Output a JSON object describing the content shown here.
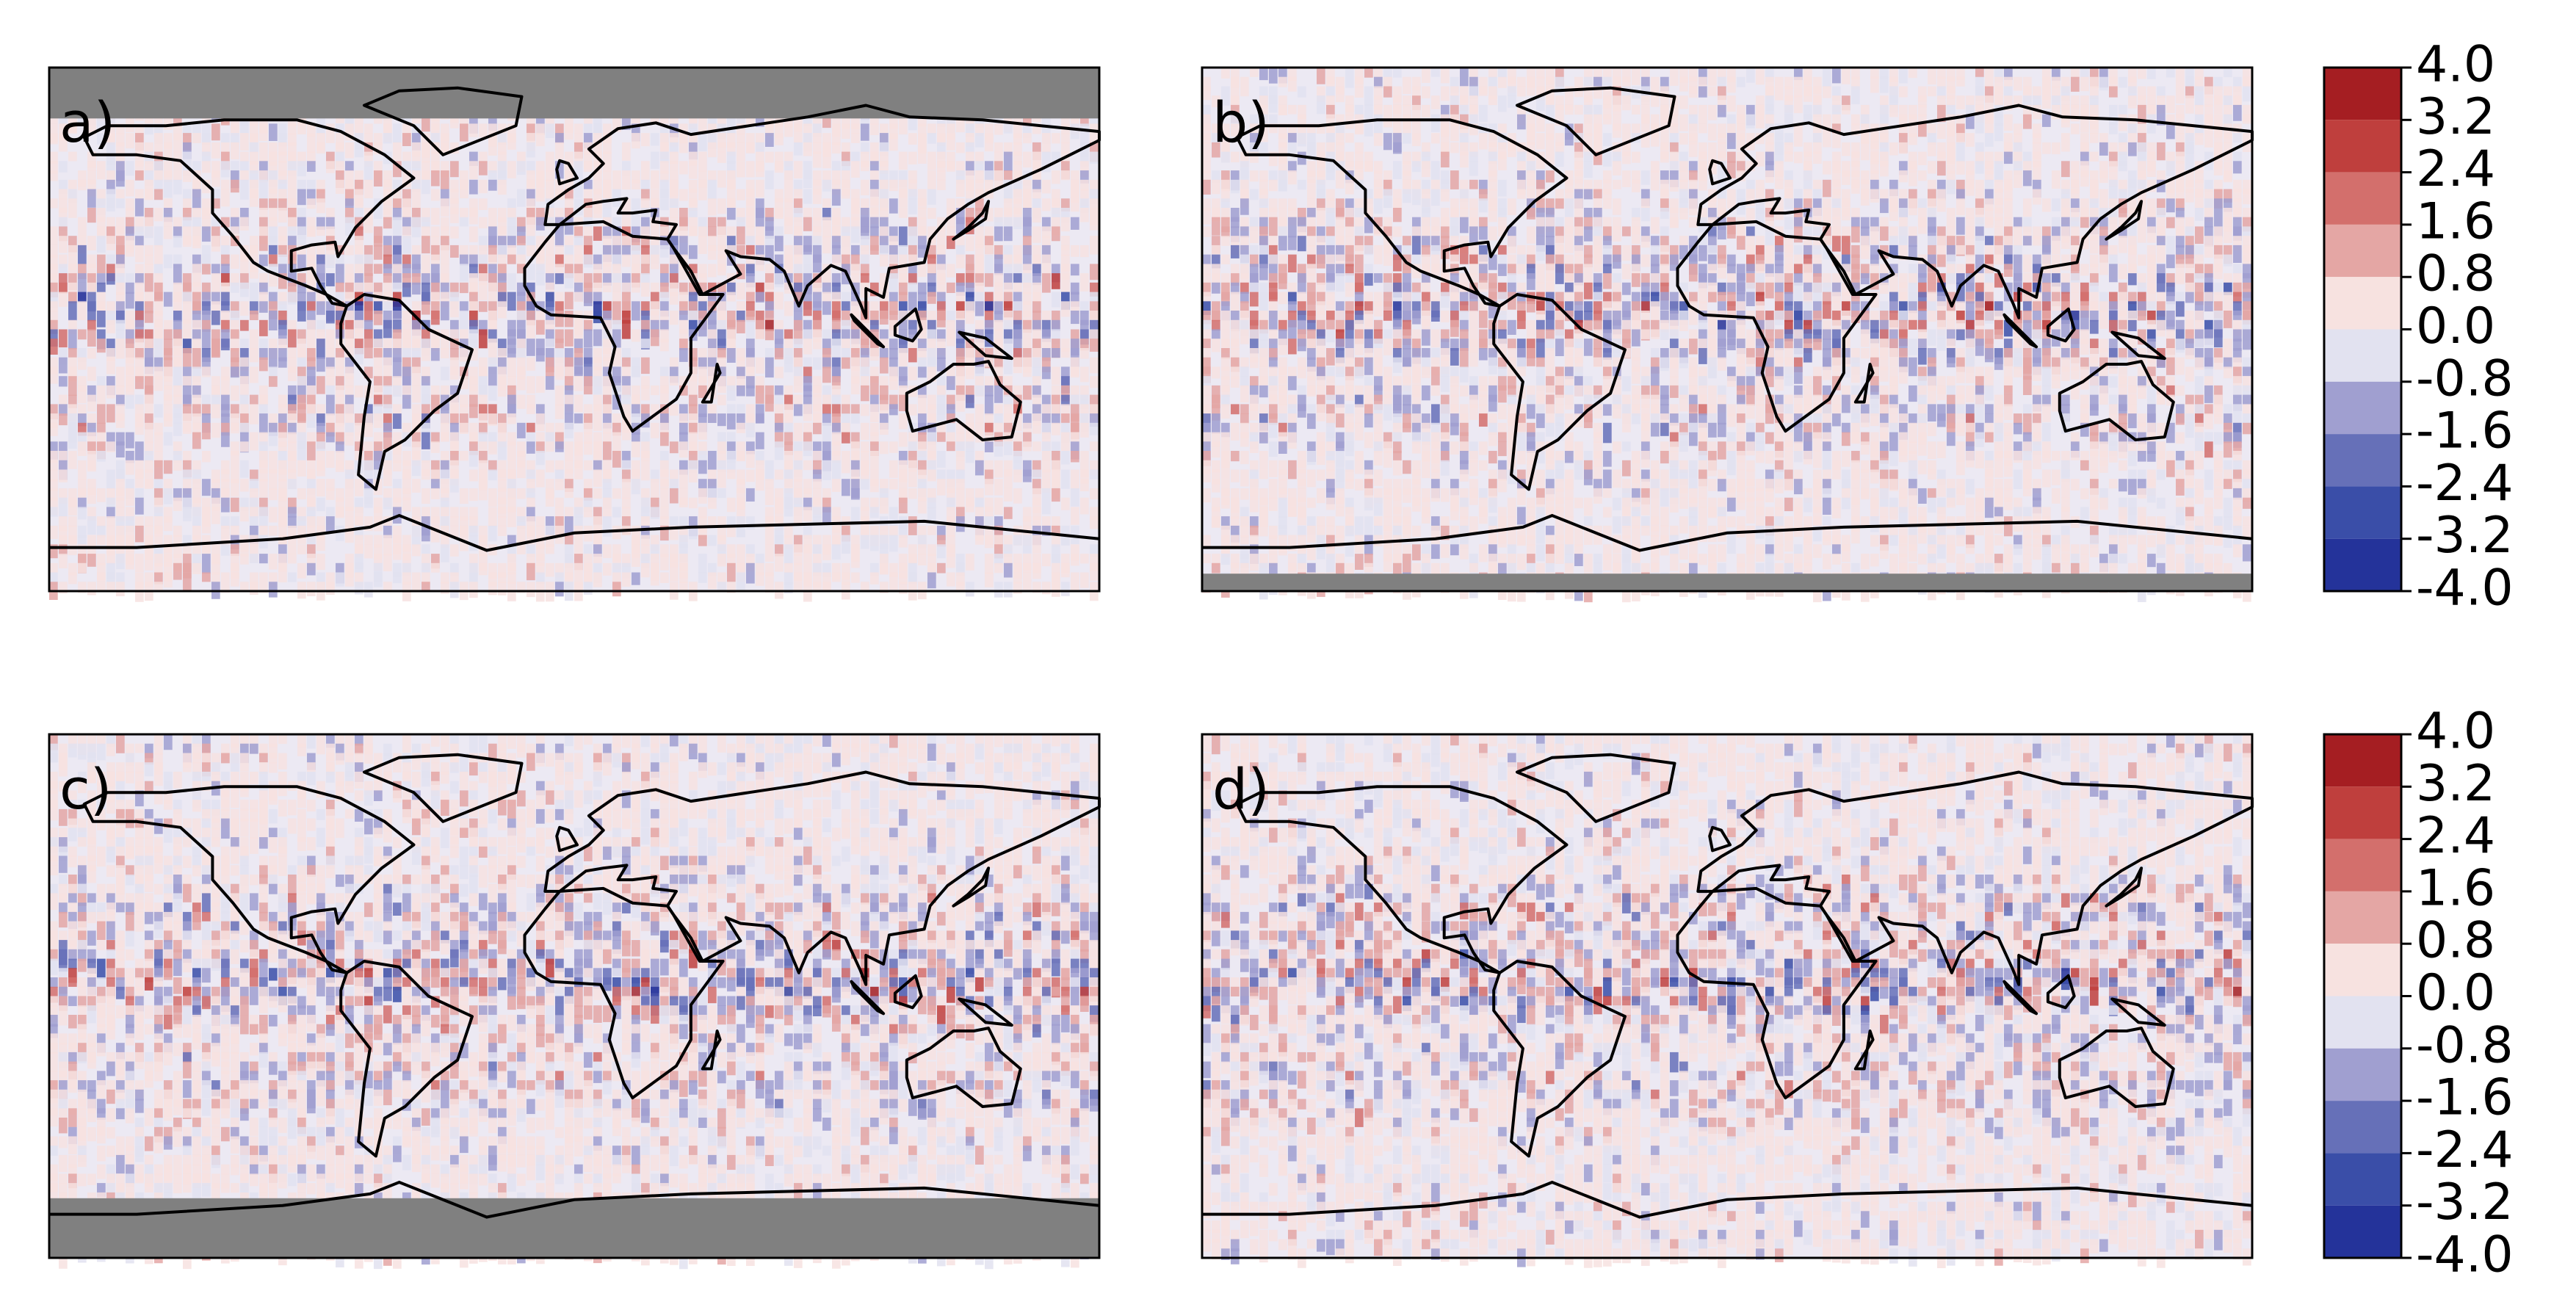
{
  "panels": [
    {
      "label": "a)"
    },
    {
      "label": "b)"
    },
    {
      "label": "c)"
    },
    {
      "label": "d)"
    }
  ],
  "colorbars": [
    {
      "lim": [
        -4,
        4
      ],
      "colors": [
        "#a51e22",
        "#bf3f3d",
        "#d36f6c",
        "#e4a6a4",
        "#f7e2e0",
        "#e2e2f0",
        "#a09fd0",
        "#6670b8",
        "#3a4ea8",
        "#24339a"
      ],
      "ticks": [
        {
          "value": 4,
          "label": "4.0"
        },
        3.2,
        2.4,
        1.6,
        0.8,
        {
          "value": 0,
          "label": "0.0"
        },
        -0.8,
        -1.6,
        -2.4,
        -3.2,
        {
          "value": -4,
          "label": "-4.0"
        }
      ]
    },
    {
      "lim": [
        -4,
        4
      ],
      "colors": [
        "#a51e22",
        "#bf3f3d",
        "#d36f6c",
        "#e4a6a4",
        "#f7e2e0",
        "#e2e2f0",
        "#a09fd0",
        "#6670b8",
        "#3a4ea8",
        "#24339a"
      ],
      "ticks": [
        {
          "value": 4,
          "label": "4.0"
        },
        3.2,
        2.4,
        1.6,
        0.8,
        {
          "value": 0,
          "label": "0.0"
        },
        -0.8,
        -1.6,
        -2.4,
        -3.2,
        {
          "value": -4,
          "label": "-4.0"
        }
      ]
    }
  ]
}
